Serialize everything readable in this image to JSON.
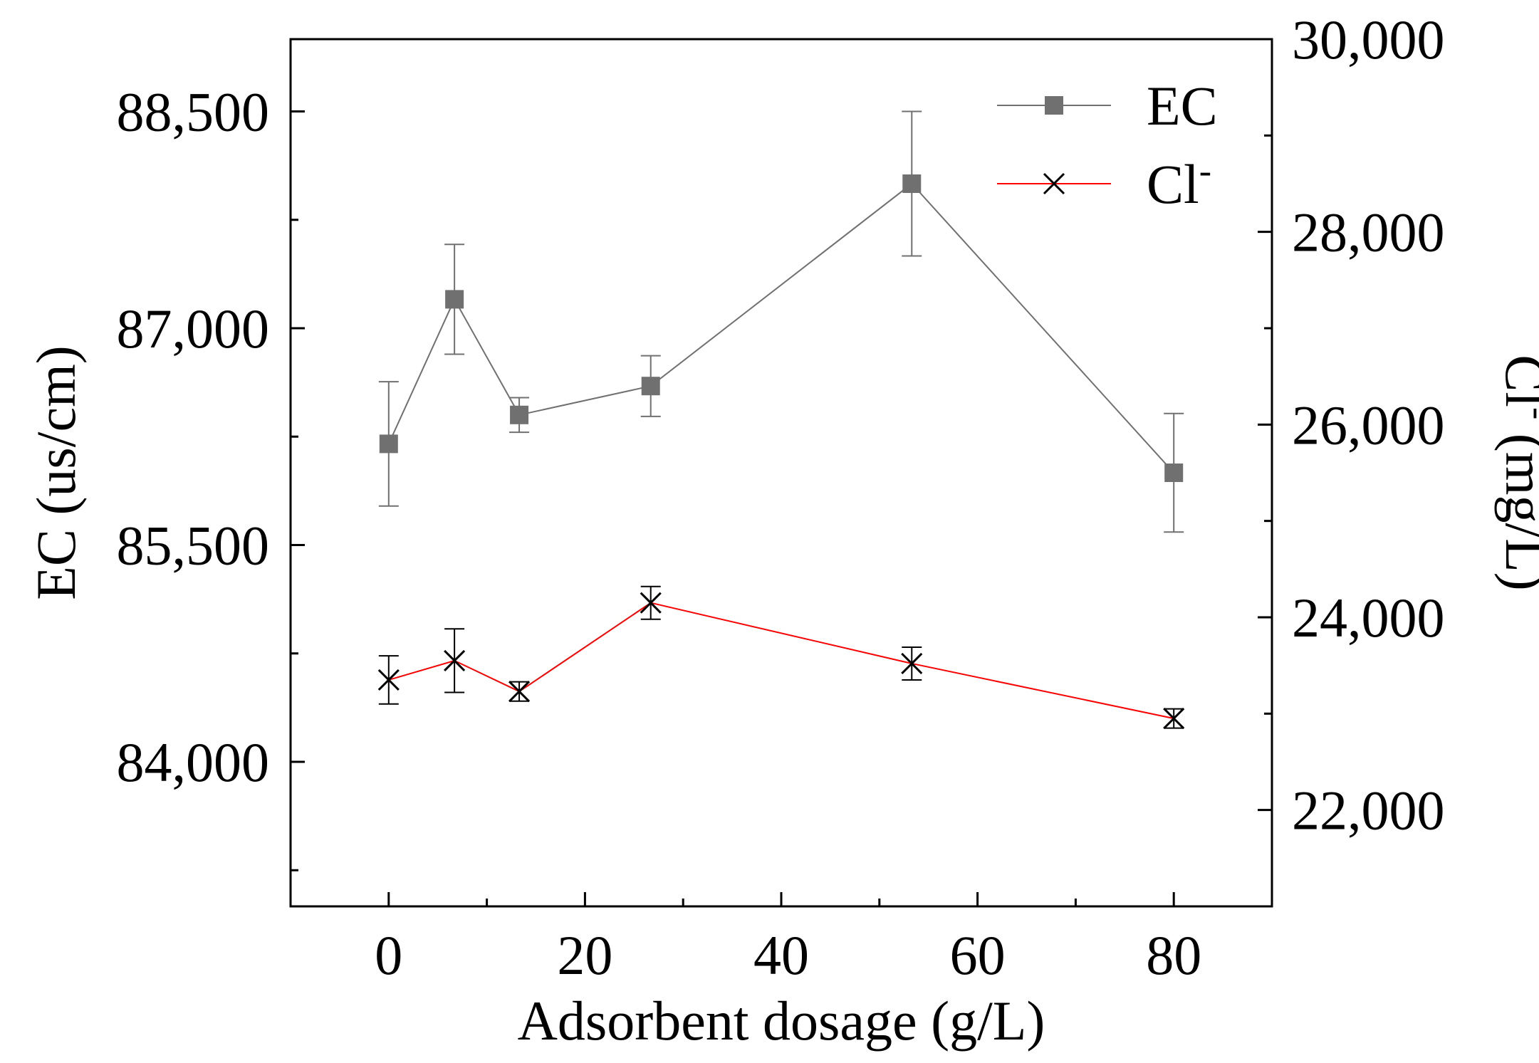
{
  "chart_data": {
    "type": "line",
    "title": "",
    "xlabel": "Adsorbent dosage (g/L)",
    "ylabel_left": "EC (us/cm)",
    "ylabel_right_base": "Cl",
    "ylabel_right_sup": "-",
    "ylabel_right_unit": " (mg/L)",
    "xlim": [
      -10,
      90
    ],
    "ylim_left": [
      83000,
      89000
    ],
    "ylim_right": [
      21000,
      30000
    ],
    "x_ticks": [
      0,
      20,
      40,
      60,
      80
    ],
    "x_tick_labels": [
      "0",
      "20",
      "40",
      "60",
      "80"
    ],
    "left_ticks": [
      84000,
      85500,
      87000,
      88500
    ],
    "left_tick_labels": [
      "84,000",
      "85,500",
      "87,000",
      "88,500"
    ],
    "right_ticks": [
      22000,
      24000,
      26000,
      28000,
      30000
    ],
    "right_tick_labels": [
      "22,000",
      "24,000",
      "26,000",
      "28,000",
      "30,000"
    ],
    "series": [
      {
        "name": "EC",
        "axis": "left",
        "color": "#707070",
        "marker": "square",
        "x": [
          0,
          6.7,
          13.3,
          26.7,
          53.3,
          80
        ],
        "values": [
          86200,
          87200,
          86400,
          86600,
          88000,
          86000
        ],
        "errors": [
          430,
          380,
          120,
          210,
          500,
          410
        ]
      },
      {
        "name": "Cl-",
        "name_base": "Cl",
        "name_sup": "-",
        "axis": "right",
        "color": "#ff0000",
        "marker": "x",
        "x": [
          0,
          6.7,
          13.3,
          26.7,
          53.3,
          80
        ],
        "values": [
          23350,
          23550,
          23230,
          24150,
          23520,
          22950
        ],
        "errors": [
          250,
          330,
          100,
          170,
          170,
          100
        ]
      }
    ],
    "legend_position": "top-right"
  }
}
